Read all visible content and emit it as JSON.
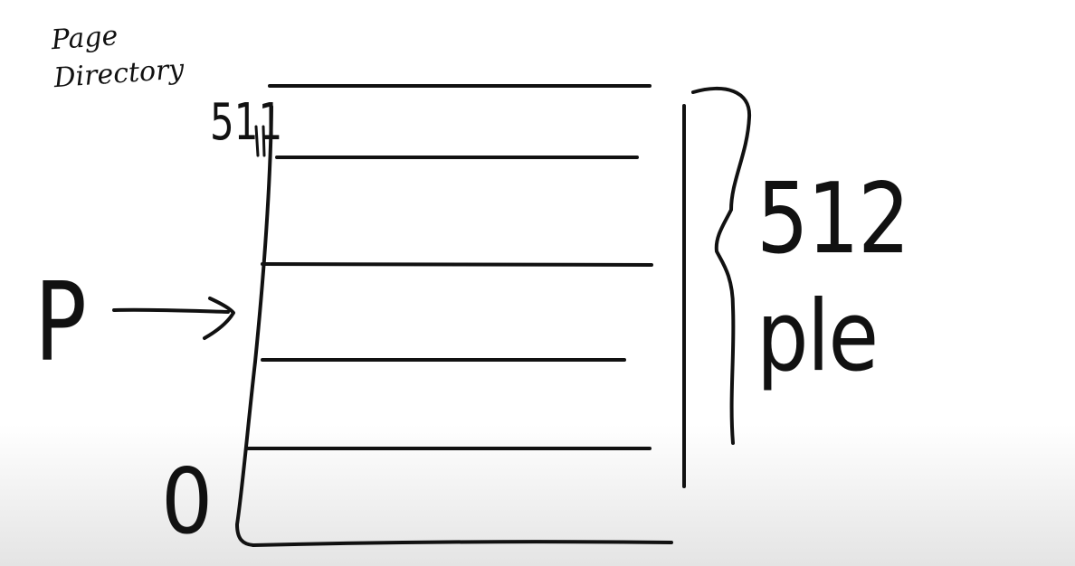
{
  "labels": {
    "page_directory": "Page Directory",
    "top_value": "511",
    "size": "512 ple",
    "pointer": "P",
    "bottom_value": "0"
  },
  "colors": {
    "ink": "#111111",
    "background": "#ffffff",
    "bottom_shade": "#e4e4e4"
  }
}
